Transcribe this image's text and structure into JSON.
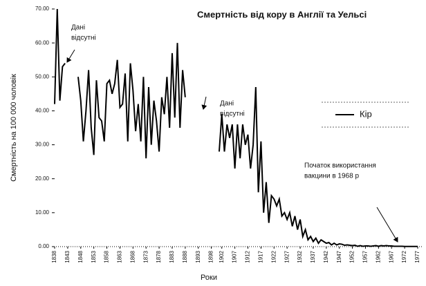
{
  "chart_data": {
    "type": "line",
    "title": "Смертність від кору в Англії та Уельсі",
    "ylabel": "Смертність на  100 000 чоловік",
    "xlabel": "Роки",
    "x": [
      1838,
      1839,
      1840,
      1841,
      1842,
      1843,
      1844,
      1845,
      1846,
      1847,
      1848,
      1849,
      1850,
      1851,
      1852,
      1853,
      1854,
      1855,
      1856,
      1857,
      1858,
      1859,
      1860,
      1861,
      1862,
      1863,
      1864,
      1865,
      1866,
      1867,
      1868,
      1869,
      1870,
      1871,
      1872,
      1873,
      1874,
      1875,
      1876,
      1877,
      1878,
      1879,
      1880,
      1881,
      1882,
      1883,
      1884,
      1885,
      1886,
      1887,
      1888,
      1889,
      1890,
      1891,
      1892,
      1893,
      1894,
      1895,
      1896,
      1897,
      1898,
      1899,
      1900,
      1901,
      1902,
      1903,
      1904,
      1905,
      1906,
      1907,
      1908,
      1909,
      1910,
      1911,
      1912,
      1913,
      1914,
      1915,
      1916,
      1917,
      1918,
      1919,
      1920,
      1921,
      1922,
      1923,
      1924,
      1925,
      1926,
      1927,
      1928,
      1929,
      1930,
      1931,
      1932,
      1933,
      1934,
      1935,
      1936,
      1937,
      1938,
      1939,
      1940,
      1941,
      1942,
      1943,
      1944,
      1945,
      1946,
      1947,
      1948,
      1949,
      1950,
      1951,
      1952,
      1953,
      1954,
      1955,
      1956,
      1957,
      1958,
      1959,
      1960,
      1961,
      1962,
      1963,
      1964,
      1965,
      1966,
      1967,
      1968,
      1969,
      1970,
      1971,
      1972,
      1973,
      1974,
      1975,
      1976,
      1977
    ],
    "series": [
      {
        "name": "Кір",
        "color": "#000000",
        "values": [
          42,
          70,
          43,
          53,
          54,
          null,
          null,
          null,
          null,
          50,
          43,
          31,
          40,
          52,
          35,
          27,
          49,
          38,
          37,
          31,
          48,
          49,
          45,
          48,
          55,
          41,
          42,
          51,
          31,
          54,
          46,
          34,
          42,
          31,
          50,
          26,
          47,
          30,
          43,
          37,
          28,
          44,
          39,
          50,
          35,
          57,
          38,
          60,
          35,
          52,
          44,
          null,
          null,
          null,
          null,
          null,
          null,
          null,
          null,
          null,
          null,
          null,
          null,
          28,
          39,
          28,
          36,
          32,
          36,
          23,
          36,
          26,
          36,
          30,
          33,
          23,
          30,
          47,
          16,
          31,
          10,
          19,
          7,
          15,
          14,
          12,
          14,
          9,
          10,
          8,
          10,
          6,
          9,
          5,
          8,
          3,
          5,
          2,
          3,
          1.5,
          2.5,
          1,
          2,
          1.5,
          1,
          1.2,
          0.5,
          1,
          0.5,
          0.8,
          0.7,
          0.4,
          0.5,
          0.4,
          0.3,
          0.4,
          0.1,
          0.3,
          0.1,
          0.2,
          0.2,
          0.1,
          0.2,
          0.3,
          0.1,
          0.3,
          0.2,
          0.3,
          0.2,
          0.2,
          0.1,
          0.1,
          0.1,
          0.1,
          0.05,
          0.05,
          0.05,
          0.05,
          0.05,
          0.05
        ]
      }
    ],
    "xlim": [
      1838,
      1977
    ],
    "xticks": [
      1838,
      1843,
      1848,
      1853,
      1858,
      1863,
      1868,
      1873,
      1878,
      1883,
      1888,
      1893,
      1898,
      1902,
      1907,
      1912,
      1917,
      1922,
      1927,
      1932,
      1937,
      1942,
      1947,
      1952,
      1957,
      1962,
      1967,
      1972,
      1977
    ],
    "ylim": [
      0,
      70
    ],
    "yticks": [
      {
        "value": 0,
        "label": "0.00"
      },
      {
        "value": 10,
        "label": "10.00"
      },
      {
        "value": 20,
        "label": "20.00"
      },
      {
        "value": 30,
        "label": "30.00"
      },
      {
        "value": 40,
        "label": "40.00"
      },
      {
        "value": 50,
        "label": "50.00"
      },
      {
        "value": 60,
        "label": "60.00"
      },
      {
        "value": 70,
        "label": "70.00"
      }
    ],
    "grid": false,
    "legend": "right",
    "annotations": [
      {
        "lines": [
          "Дані",
          "відсутні"
        ]
      },
      {
        "lines": [
          "Дані",
          "відсутні"
        ]
      },
      {
        "lines": [
          "Початок використання",
          "вакцини в 1968 р"
        ]
      }
    ]
  }
}
